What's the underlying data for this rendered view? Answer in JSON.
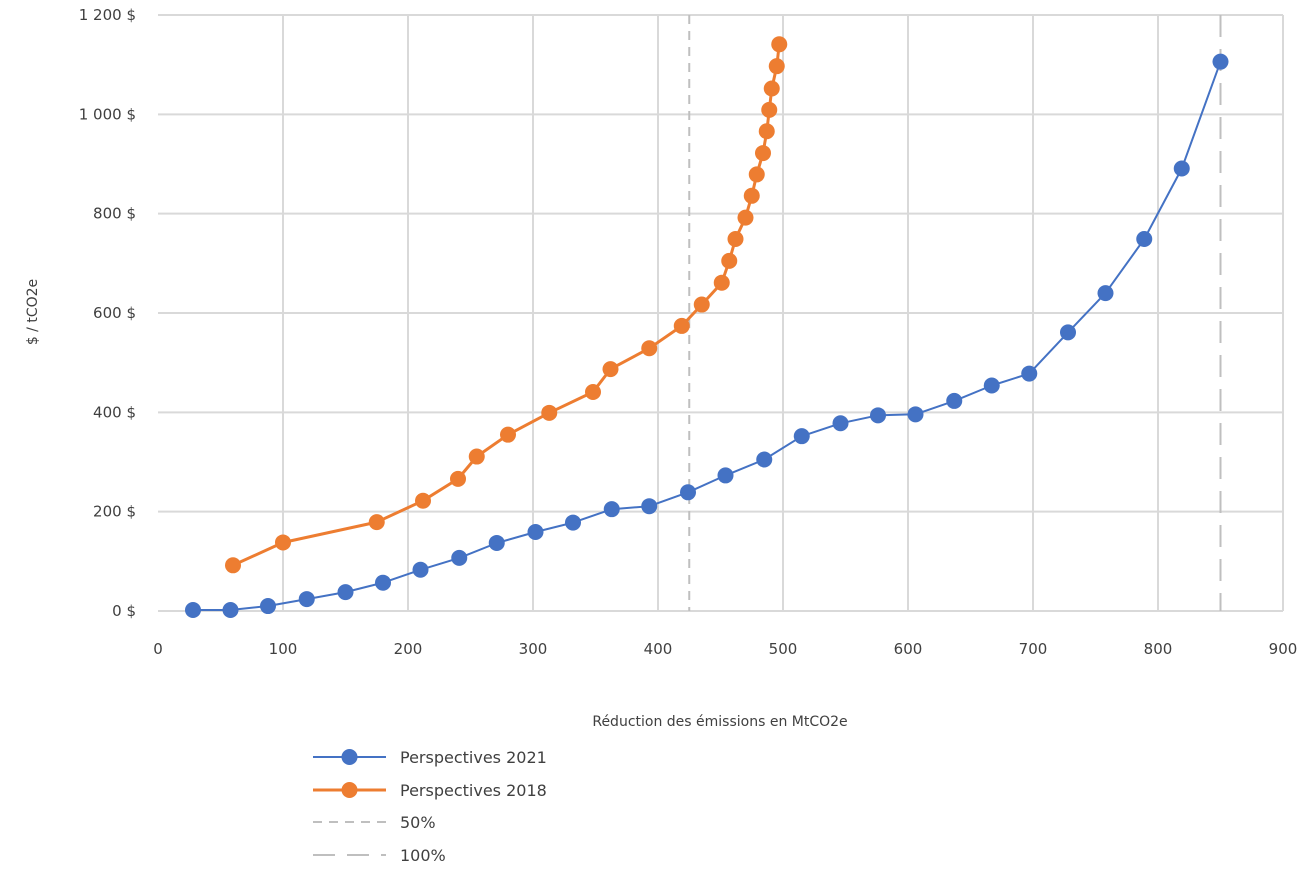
{
  "chart_data": {
    "type": "line",
    "title": "",
    "xlabel": "Réduction des émissions en MtCO2e",
    "ylabel": "$ / tCO2e",
    "xlim": [
      0,
      900
    ],
    "ylim": [
      0,
      1200
    ],
    "x_ticks": [
      0,
      100,
      200,
      300,
      400,
      500,
      600,
      700,
      800,
      900
    ],
    "x_tick_labels": [
      "0",
      "100",
      "200",
      "300",
      "400",
      "500",
      "600",
      "700",
      "800",
      "900"
    ],
    "y_ticks": [
      0,
      200,
      400,
      600,
      800,
      1000,
      1200
    ],
    "y_tick_labels": [
      "0 $",
      "200 $",
      "400 $",
      "600 $",
      "800 $",
      "1 000 $",
      "1 200 $"
    ],
    "grid": true,
    "legend_position": "bottom",
    "series": [
      {
        "name": "Perspectives 2021",
        "color": "#4472C4",
        "marker": "circle",
        "x": [
          28,
          58,
          88,
          119,
          150,
          180,
          210,
          241,
          271,
          302,
          332,
          363,
          393,
          424,
          454,
          485,
          515,
          546,
          576,
          606,
          637,
          667,
          697,
          728,
          758,
          789,
          819,
          850
        ],
        "y": [
          2,
          2,
          10,
          24,
          38,
          57,
          83,
          107,
          137,
          159,
          178,
          205,
          211,
          239,
          273,
          305,
          352,
          378,
          394,
          396,
          423,
          454,
          478,
          561,
          640,
          749,
          891,
          1106
        ]
      },
      {
        "name": "Perspectives 2018",
        "color": "#ED7D31",
        "marker": "circle",
        "x": [
          60,
          100,
          175,
          212,
          240,
          255,
          280,
          313,
          348,
          362,
          393,
          419,
          435,
          451,
          457,
          462,
          470,
          475,
          479,
          484,
          487,
          489,
          491,
          495,
          497
        ],
        "y": [
          92,
          138,
          179,
          222,
          266,
          311,
          355,
          399,
          441,
          487,
          529,
          574,
          617,
          661,
          705,
          749,
          792,
          836,
          879,
          922,
          966,
          1009,
          1052,
          1097,
          1141
        ]
      }
    ],
    "reference_lines": [
      {
        "name": "50%",
        "x": 425,
        "dash": "short"
      },
      {
        "name": "100%",
        "x": 850,
        "dash": "long"
      }
    ],
    "colors": {
      "grid": "#D9D9D9",
      "reference_line": "#BFBFBF",
      "text": "#404040"
    }
  }
}
